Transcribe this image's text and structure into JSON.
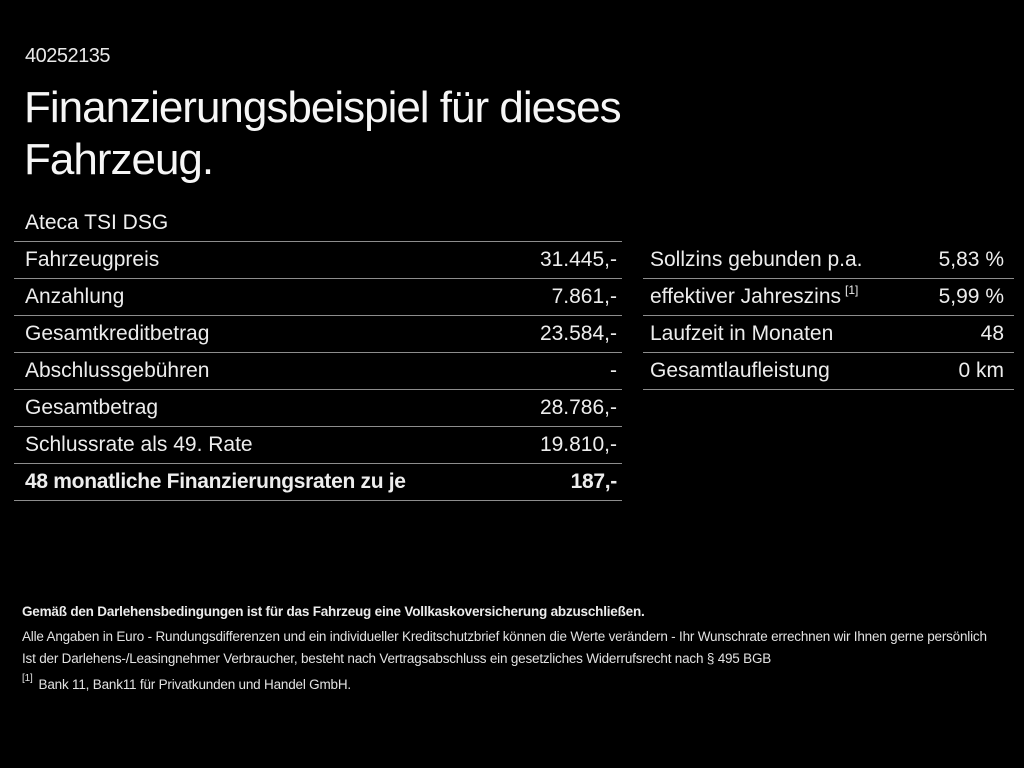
{
  "page": {
    "background_color": "#000000",
    "text_color": "#ededed",
    "divider_color": "#8d8d8d"
  },
  "header": {
    "id_number": "40252135",
    "title_line1": "Finanzierungsbeispiel für dieses",
    "title_line2": "Fahrzeug."
  },
  "financing_table": {
    "model": "Ateca TSI DSG",
    "rows": [
      {
        "label": "Fahrzeugpreis",
        "value": "31.445,-"
      },
      {
        "label": "Anzahlung",
        "value": "7.861,-"
      },
      {
        "label": "Gesamtkreditbetrag",
        "value": "23.584,-"
      },
      {
        "label": "Abschlussgebühren",
        "value": "-"
      },
      {
        "label": "Gesamtbetrag",
        "value": "28.786,-"
      },
      {
        "label": "Schlussrate als 49. Rate",
        "value": "19.810,-"
      },
      {
        "label": "48 monatliche Finanzierungsraten zu je",
        "value": "187,-"
      }
    ]
  },
  "conditions_table": {
    "rows": [
      {
        "label": "Sollzins gebunden p.a.",
        "sup": "",
        "value": "5,83 %"
      },
      {
        "label": "effektiver Jahreszins",
        "sup": "[1]",
        "value": "5,99 %"
      },
      {
        "label": "Laufzeit in Monaten",
        "sup": "",
        "value": "48"
      },
      {
        "label": "Gesamtlaufleistung",
        "sup": "",
        "value": "0 km"
      }
    ]
  },
  "footer": {
    "line1": "Gemäß den Darlehensbedingungen ist für das Fahrzeug eine Vollkaskoversicherung abzuschließen.",
    "line2": "Alle Angaben in Euro - Rundungsdifferenzen und ein individueller Kreditschutzbrief können die Werte verändern - Ihr Wunschrate errechnen wir Ihnen gerne persönlich",
    "line3": "Ist der Darlehens-/Leasingnehmer Verbraucher, besteht nach Vertragsabschluss ein gesetzliches Widerrufsrecht nach § 495 BGB",
    "footnote_marker": "[1]",
    "footnote_text": "Bank 11, Bank11 für Privatkunden und Handel GmbH."
  }
}
